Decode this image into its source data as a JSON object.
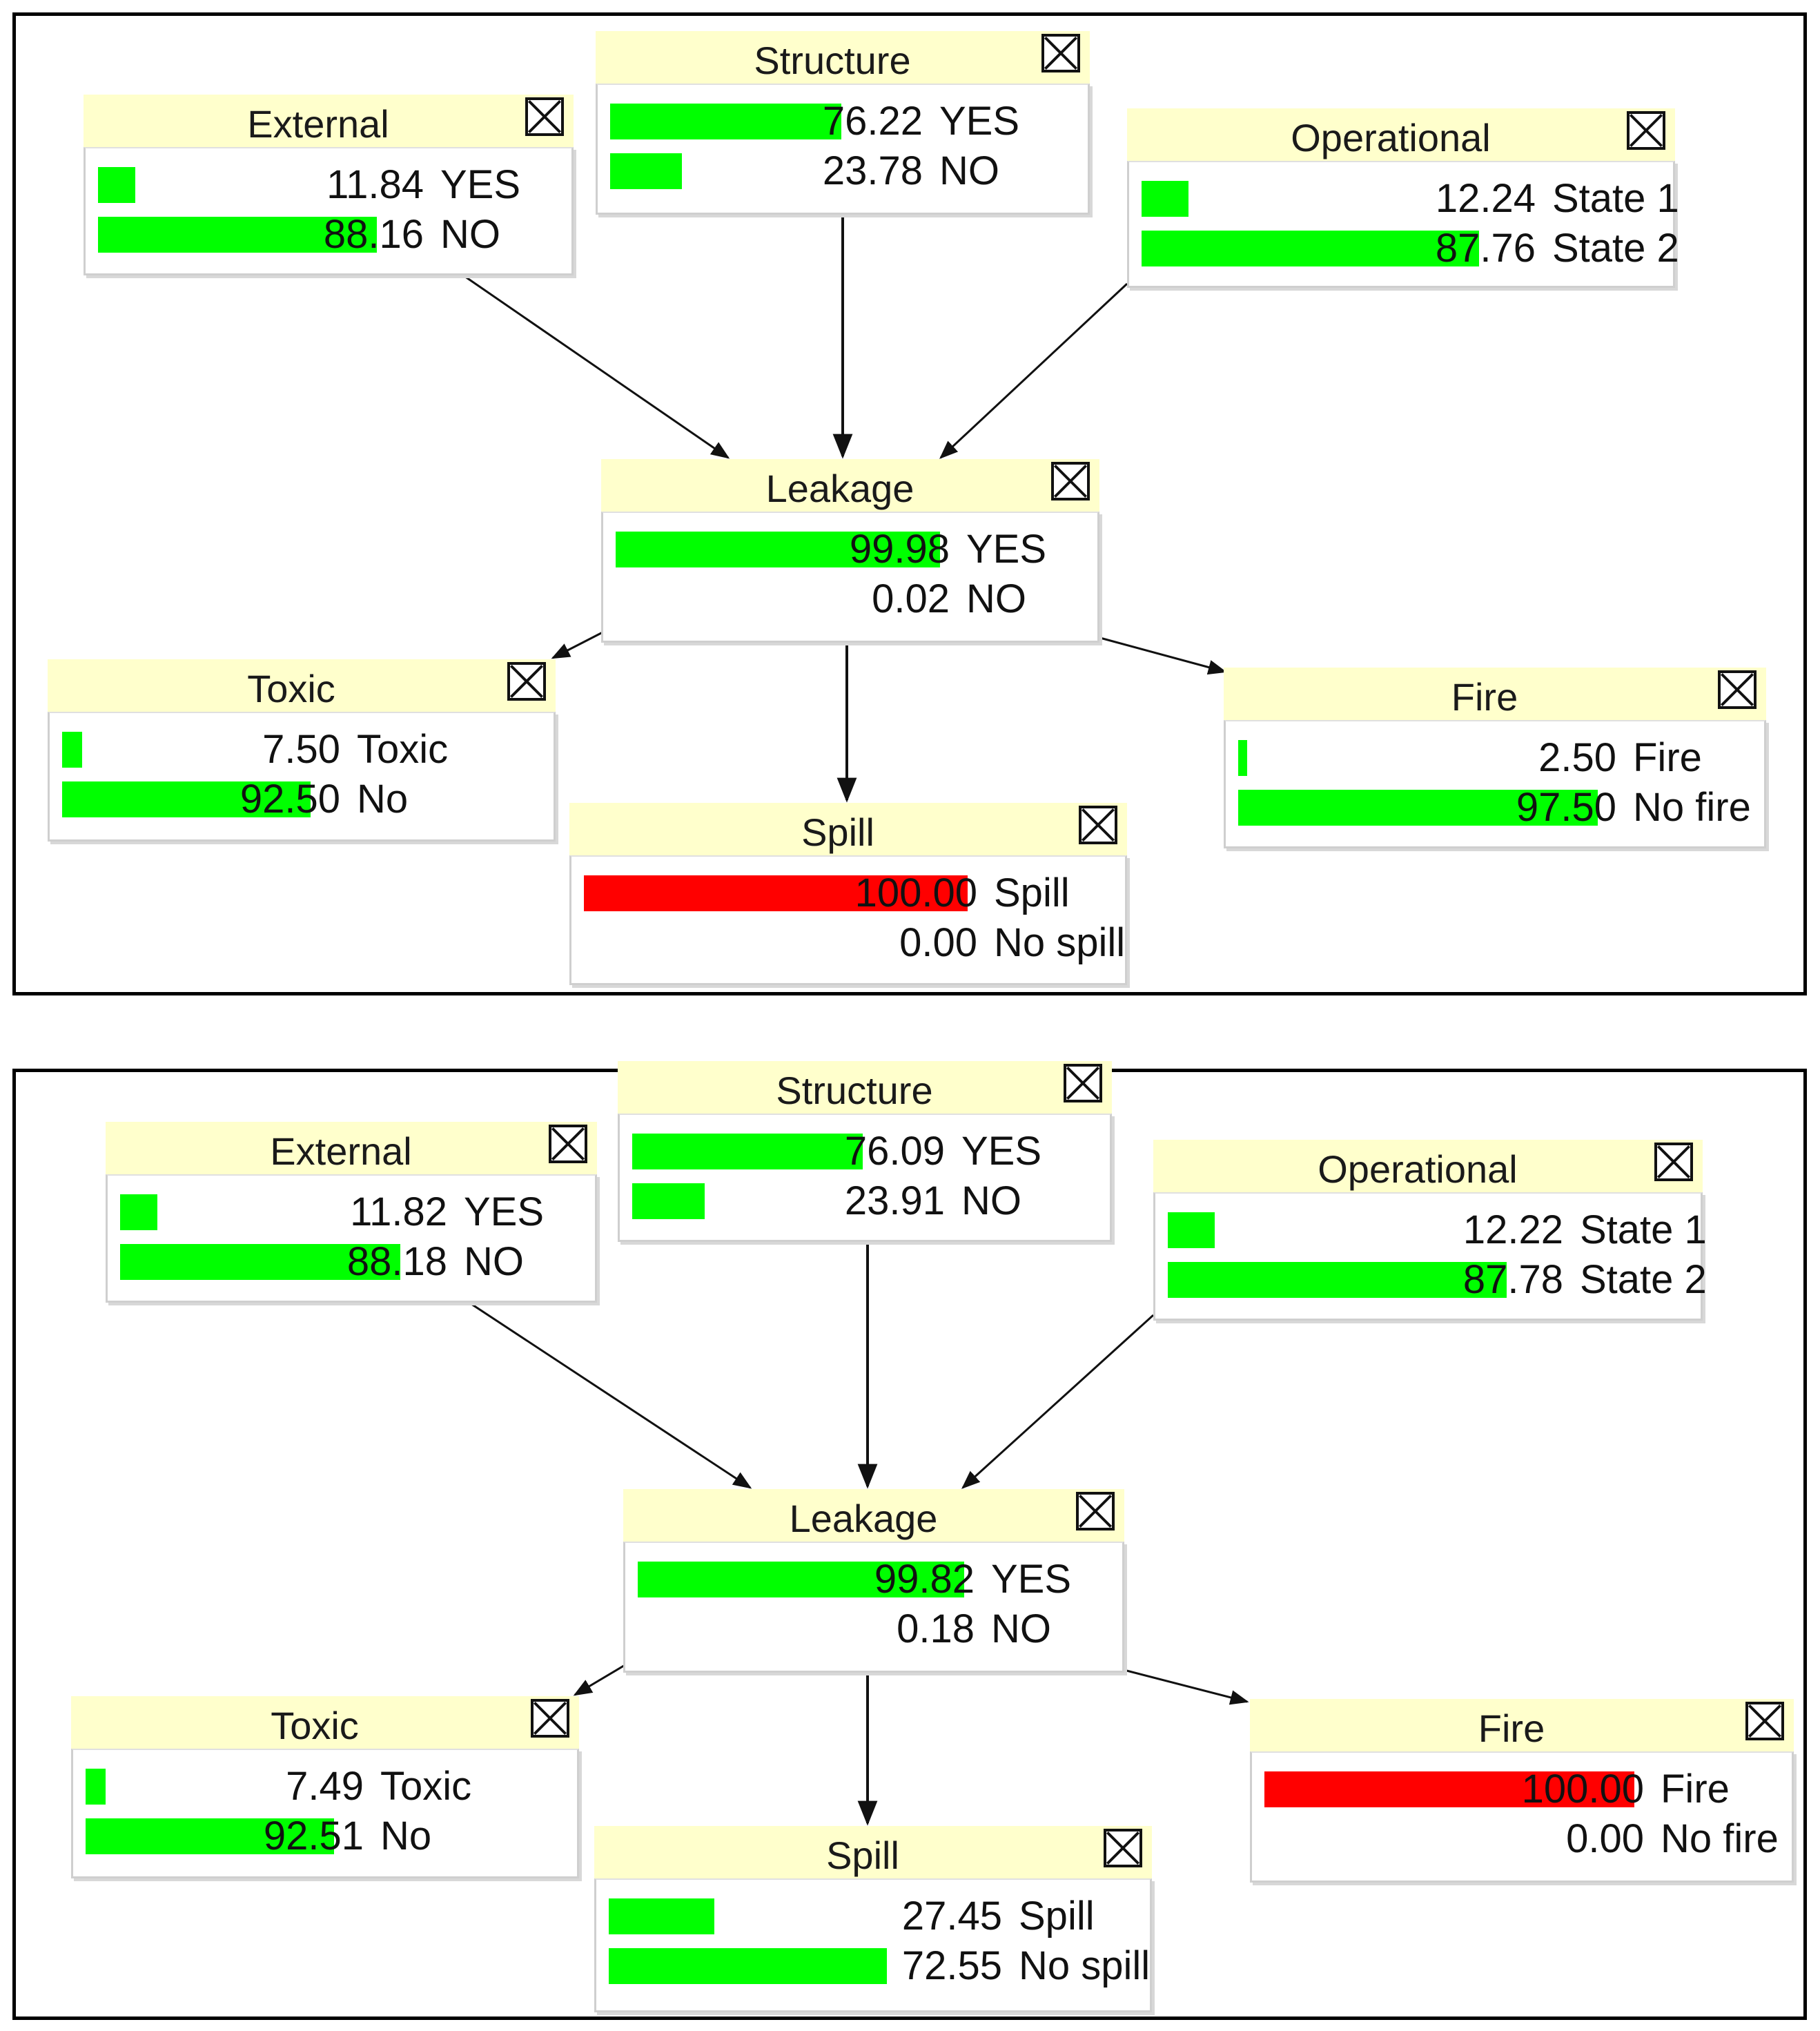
{
  "diagrams": [
    {
      "nodes": {
        "external": {
          "title": "External",
          "states": [
            {
              "value": "11.84",
              "label": "YES",
              "fraction": 0.1184,
              "color": "green"
            },
            {
              "value": "88.16",
              "label": "NO",
              "fraction": 0.8816,
              "color": "green"
            }
          ]
        },
        "structure": {
          "title": "Structure",
          "states": [
            {
              "value": "76.22",
              "label": "YES",
              "fraction": 0.7622,
              "color": "green"
            },
            {
              "value": "23.78",
              "label": "NO",
              "fraction": 0.2378,
              "color": "green"
            }
          ]
        },
        "operational": {
          "title": "Operational",
          "states": [
            {
              "value": "12.24",
              "label": "State 1",
              "fraction": 0.1224,
              "color": "green"
            },
            {
              "value": "87.76",
              "label": "State 2",
              "fraction": 0.8776,
              "color": "green"
            }
          ]
        },
        "leakage": {
          "title": "Leakage",
          "states": [
            {
              "value": "99.98",
              "label": "YES",
              "fraction": 0.9998,
              "color": "green"
            },
            {
              "value": "0.02",
              "label": "NO",
              "fraction": 0.0002,
              "color": "green"
            }
          ]
        },
        "toxic": {
          "title": "Toxic",
          "states": [
            {
              "value": "7.50",
              "label": "Toxic",
              "fraction": 0.075,
              "color": "green"
            },
            {
              "value": "92.50",
              "label": "No",
              "fraction": 0.925,
              "color": "green"
            }
          ]
        },
        "spill": {
          "title": "Spill",
          "states": [
            {
              "value": "100.00",
              "label": "Spill",
              "fraction": 1.0,
              "color": "red"
            },
            {
              "value": "0.00",
              "label": "No spill",
              "fraction": 0.0,
              "color": "green"
            }
          ]
        },
        "fire": {
          "title": "Fire",
          "states": [
            {
              "value": "2.50",
              "label": "Fire",
              "fraction": 0.025,
              "color": "green"
            },
            {
              "value": "97.50",
              "label": "No fire",
              "fraction": 0.975,
              "color": "green"
            }
          ]
        }
      }
    },
    {
      "nodes": {
        "external": {
          "title": "External",
          "states": [
            {
              "value": "11.82",
              "label": "YES",
              "fraction": 0.1182,
              "color": "green"
            },
            {
              "value": "88.18",
              "label": "NO",
              "fraction": 0.8818,
              "color": "green"
            }
          ]
        },
        "structure": {
          "title": "Structure",
          "states": [
            {
              "value": "76.09",
              "label": "YES",
              "fraction": 0.7609,
              "color": "green"
            },
            {
              "value": "23.91",
              "label": "NO",
              "fraction": 0.2391,
              "color": "green"
            }
          ]
        },
        "operational": {
          "title": "Operational",
          "states": [
            {
              "value": "12.22",
              "label": "State 1",
              "fraction": 0.1222,
              "color": "green"
            },
            {
              "value": "87.78",
              "label": "State 2",
              "fraction": 0.8778,
              "color": "green"
            }
          ]
        },
        "leakage": {
          "title": "Leakage",
          "states": [
            {
              "value": "99.82",
              "label": "YES",
              "fraction": 0.9982,
              "color": "green"
            },
            {
              "value": "0.18",
              "label": "NO",
              "fraction": 0.0018,
              "color": "green"
            }
          ]
        },
        "toxic": {
          "title": "Toxic",
          "states": [
            {
              "value": "7.49",
              "label": "Toxic",
              "fraction": 0.0749,
              "color": "green"
            },
            {
              "value": "92.51",
              "label": "No",
              "fraction": 0.9251,
              "color": "green"
            }
          ]
        },
        "spill": {
          "title": "Spill",
          "states": [
            {
              "value": "27.45",
              "label": "Spill",
              "fraction": 0.2745,
              "color": "green"
            },
            {
              "value": "72.55",
              "label": "No spill",
              "fraction": 0.7255,
              "color": "green"
            }
          ]
        },
        "fire": {
          "title": "Fire",
          "states": [
            {
              "value": "100.00",
              "label": "Fire",
              "fraction": 1.0,
              "color": "red"
            },
            {
              "value": "0.00",
              "label": "No fire",
              "fraction": 0.0,
              "color": "green"
            }
          ]
        }
      }
    }
  ],
  "edges": [
    {
      "from": "external",
      "to": "leakage"
    },
    {
      "from": "structure",
      "to": "leakage"
    },
    {
      "from": "operational",
      "to": "leakage"
    },
    {
      "from": "leakage",
      "to": "toxic"
    },
    {
      "from": "leakage",
      "to": "spill"
    },
    {
      "from": "leakage",
      "to": "fire"
    }
  ],
  "colors": {
    "green": "#00ff00",
    "red": "#ff0000",
    "title_bg": "#ffffcc"
  }
}
